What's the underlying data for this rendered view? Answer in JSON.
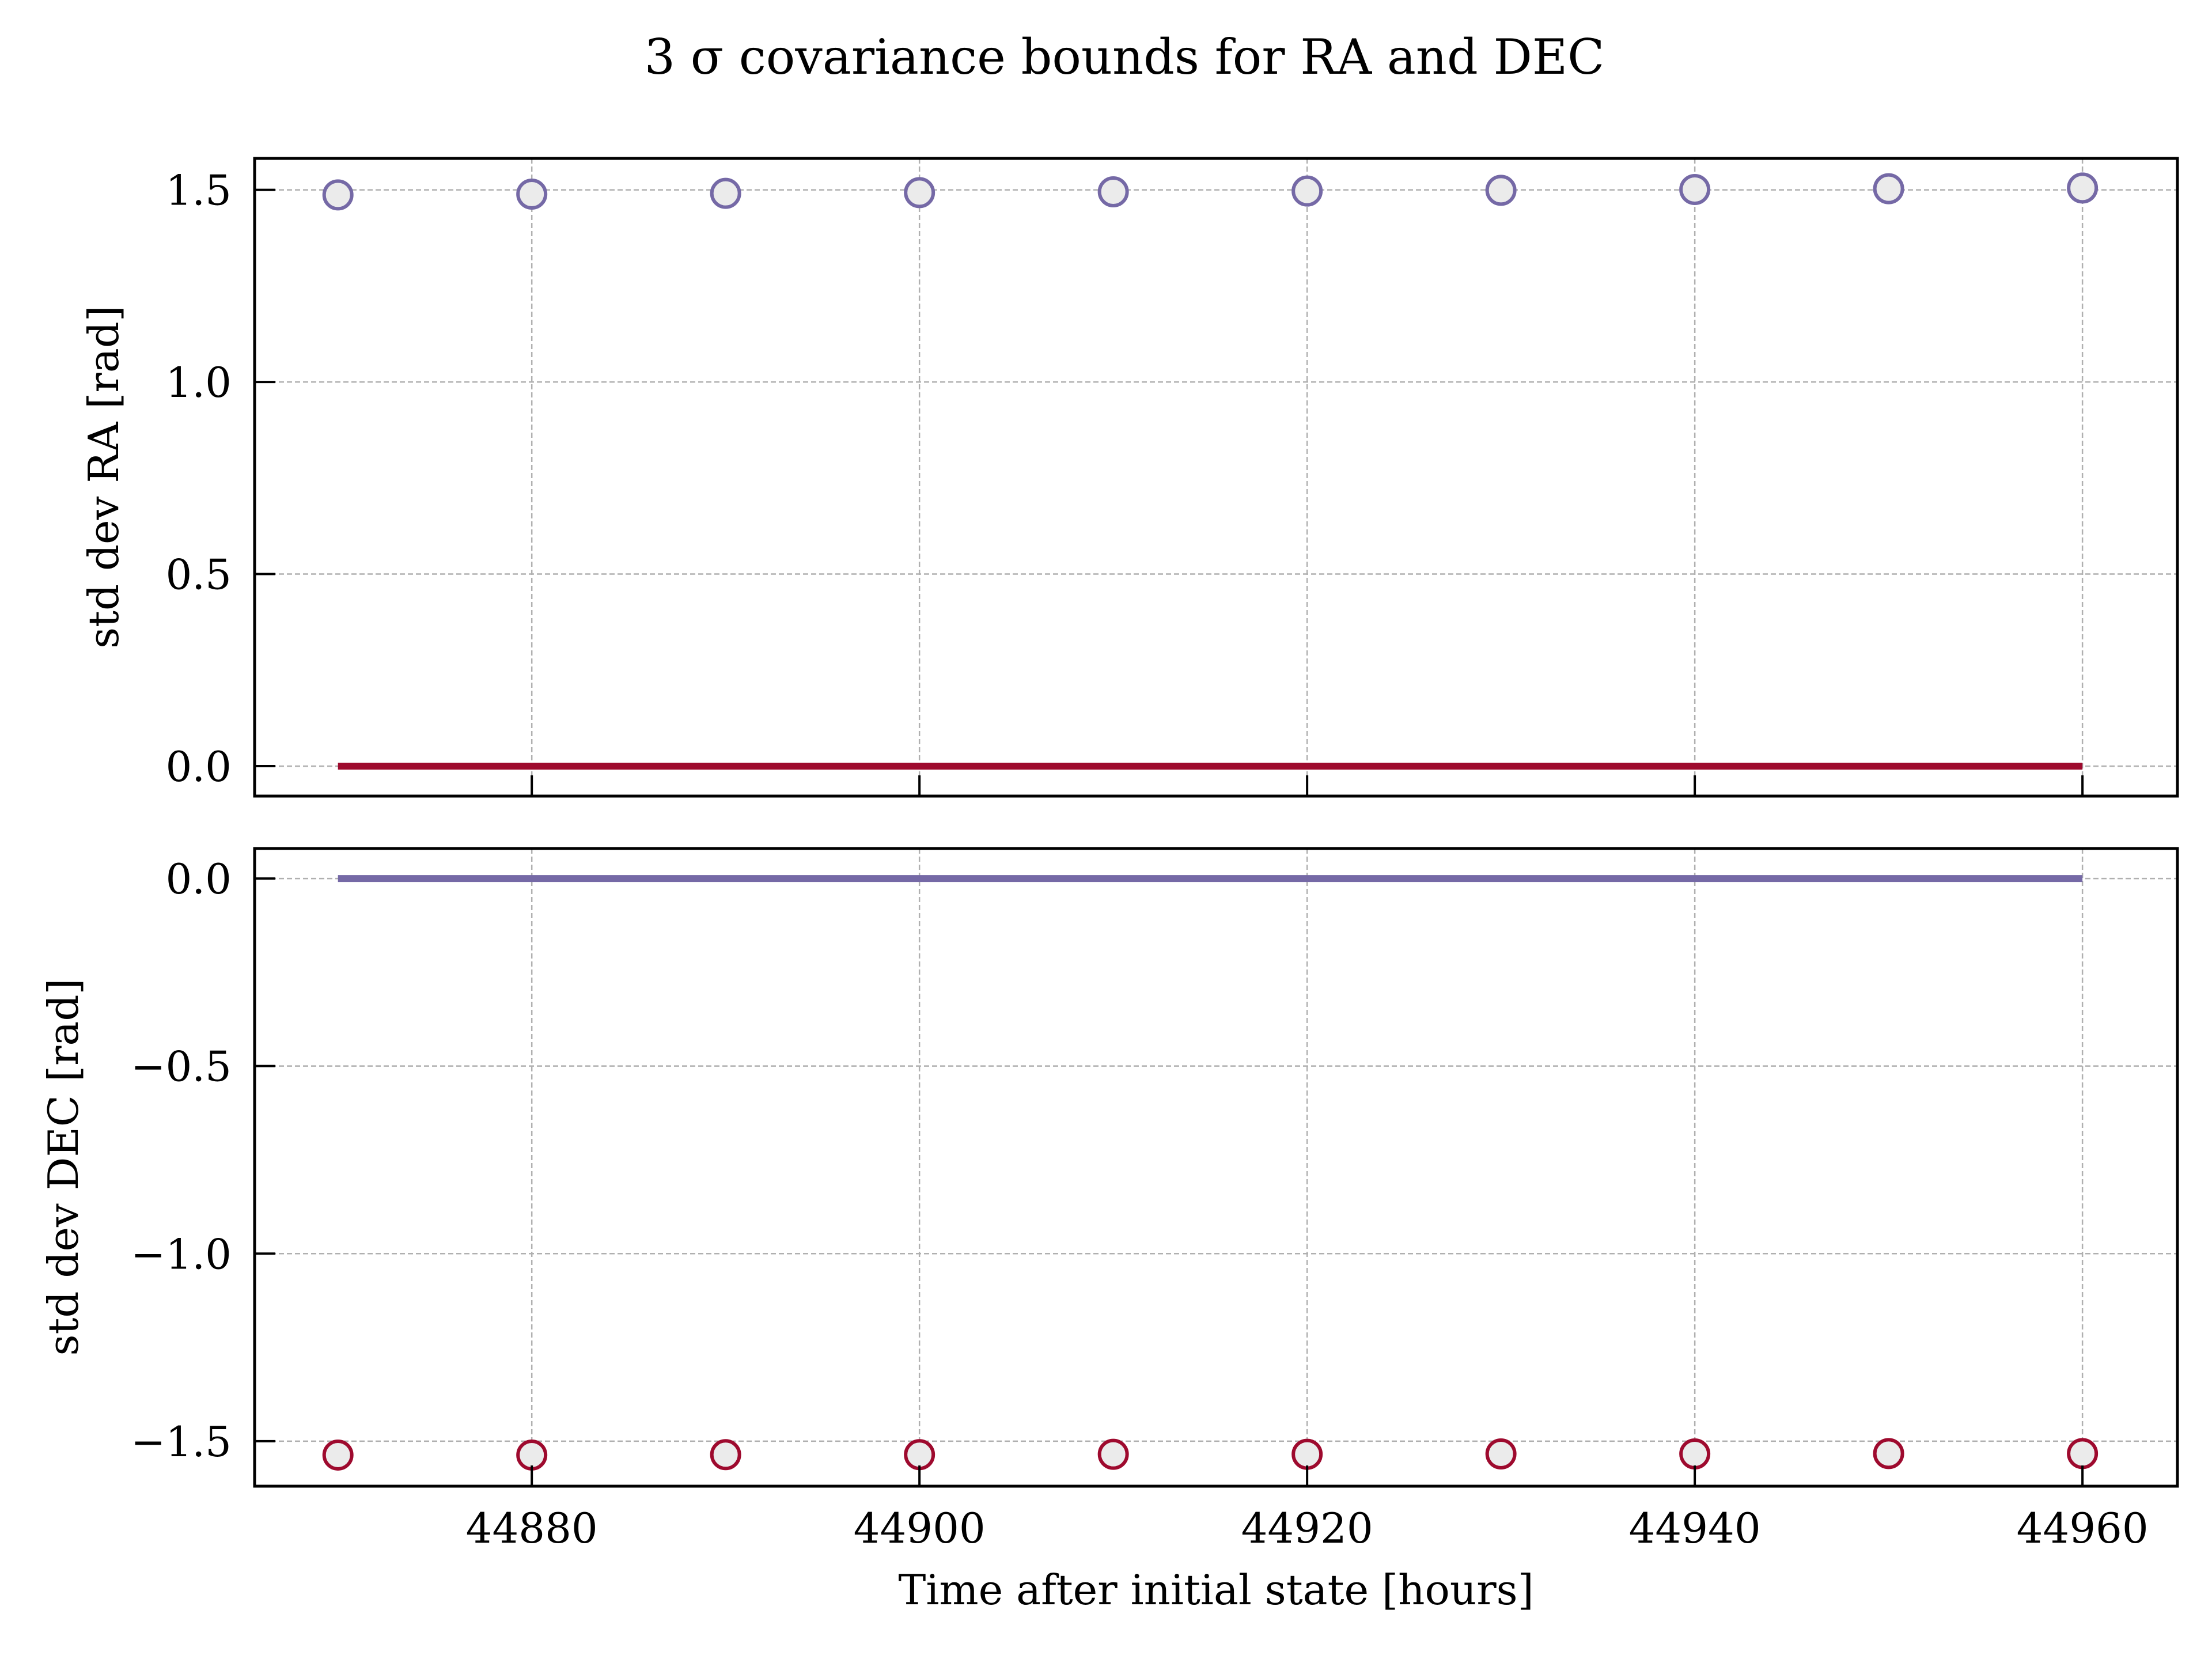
{
  "chart_data": {
    "type": "scatter",
    "title": "3 σ covariance bounds for RA and DEC",
    "xlabel": "Time after initial state [hours]",
    "xlim": [
      44865.7,
      44964.9
    ],
    "x_ticks": [
      "44880",
      "44900",
      "44920",
      "44940",
      "44960"
    ],
    "x_tick_values": [
      44880,
      44900,
      44920,
      44940,
      44960
    ],
    "grid": true,
    "subplots": [
      {
        "ylabel": "std dev RA [rad]",
        "ylim": [
          -0.078,
          1.582
        ],
        "y_ticks": [
          "0.0",
          "0.5",
          "1.0",
          "1.5"
        ],
        "y_tick_values": [
          0,
          0.5,
          1.0,
          1.5
        ],
        "line": {
          "color": "#9e0a2e",
          "x": [
            44870,
            44960
          ],
          "y": [
            0,
            0
          ]
        },
        "scatter": {
          "edge_color": "#7569a6",
          "face_color": "#ebebeb",
          "x": [
            44870,
            44880,
            44890,
            44900,
            44910,
            44920,
            44930,
            44940,
            44950,
            44960
          ],
          "y": [
            1.487,
            1.489,
            1.491,
            1.493,
            1.495,
            1.497,
            1.499,
            1.501,
            1.503,
            1.505
          ]
        }
      },
      {
        "ylabel": "std dev DEC [rad]",
        "ylim": [
          -1.62,
          0.08
        ],
        "y_ticks": [
          "0.0",
          "−0.5",
          "−1.0",
          "−1.5"
        ],
        "y_tick_values": [
          0,
          -0.5,
          -1.0,
          -1.5
        ],
        "line": {
          "color": "#7569a6",
          "x": [
            44870,
            44960
          ],
          "y": [
            0,
            0
          ]
        },
        "scatter": {
          "edge_color": "#9e0a2e",
          "face_color": "#ebebeb",
          "x": [
            44870,
            44880,
            44890,
            44900,
            44910,
            44920,
            44930,
            44940,
            44950,
            44960
          ],
          "y": [
            -1.537,
            -1.537,
            -1.536,
            -1.536,
            -1.535,
            -1.535,
            -1.534,
            -1.534,
            -1.533,
            -1.533
          ]
        }
      }
    ]
  }
}
